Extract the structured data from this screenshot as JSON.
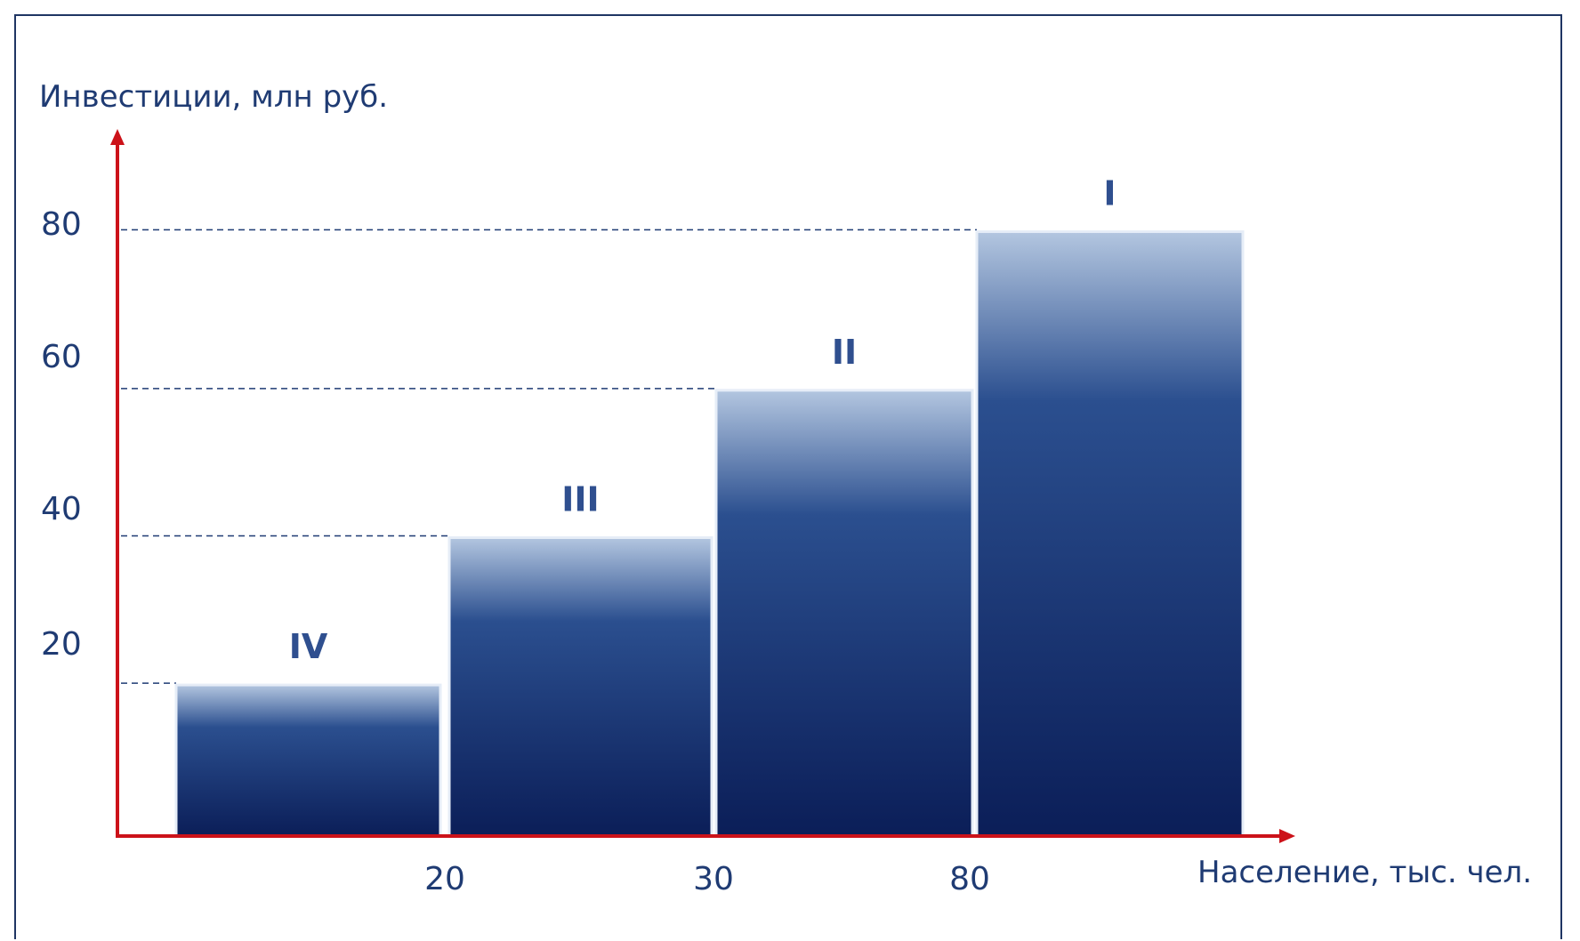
{
  "chart_data": {
    "type": "bar",
    "ylabel": "Инвестиции, млн руб.",
    "xlabel": "Население, тыс. чел.",
    "yticks": [
      20,
      40,
      60,
      80
    ],
    "xticks": [
      20,
      30,
      80
    ],
    "ylim": [
      0,
      93
    ],
    "grid": false,
    "reference_lines": "dashed lines from y-axis to each bar top",
    "categories": [
      "IV",
      "III",
      "II",
      "I"
    ],
    "values": [
      20,
      39.5,
      59,
      80
    ]
  },
  "colors": {
    "axis": "#cc1219",
    "bar_top": "#b3c6e0",
    "bar_mid": "#2b4f8f",
    "bar_bottom": "#0b1e58",
    "text": "#1f3b73",
    "frame": "#1f3563",
    "dash": "#1f3b73"
  }
}
